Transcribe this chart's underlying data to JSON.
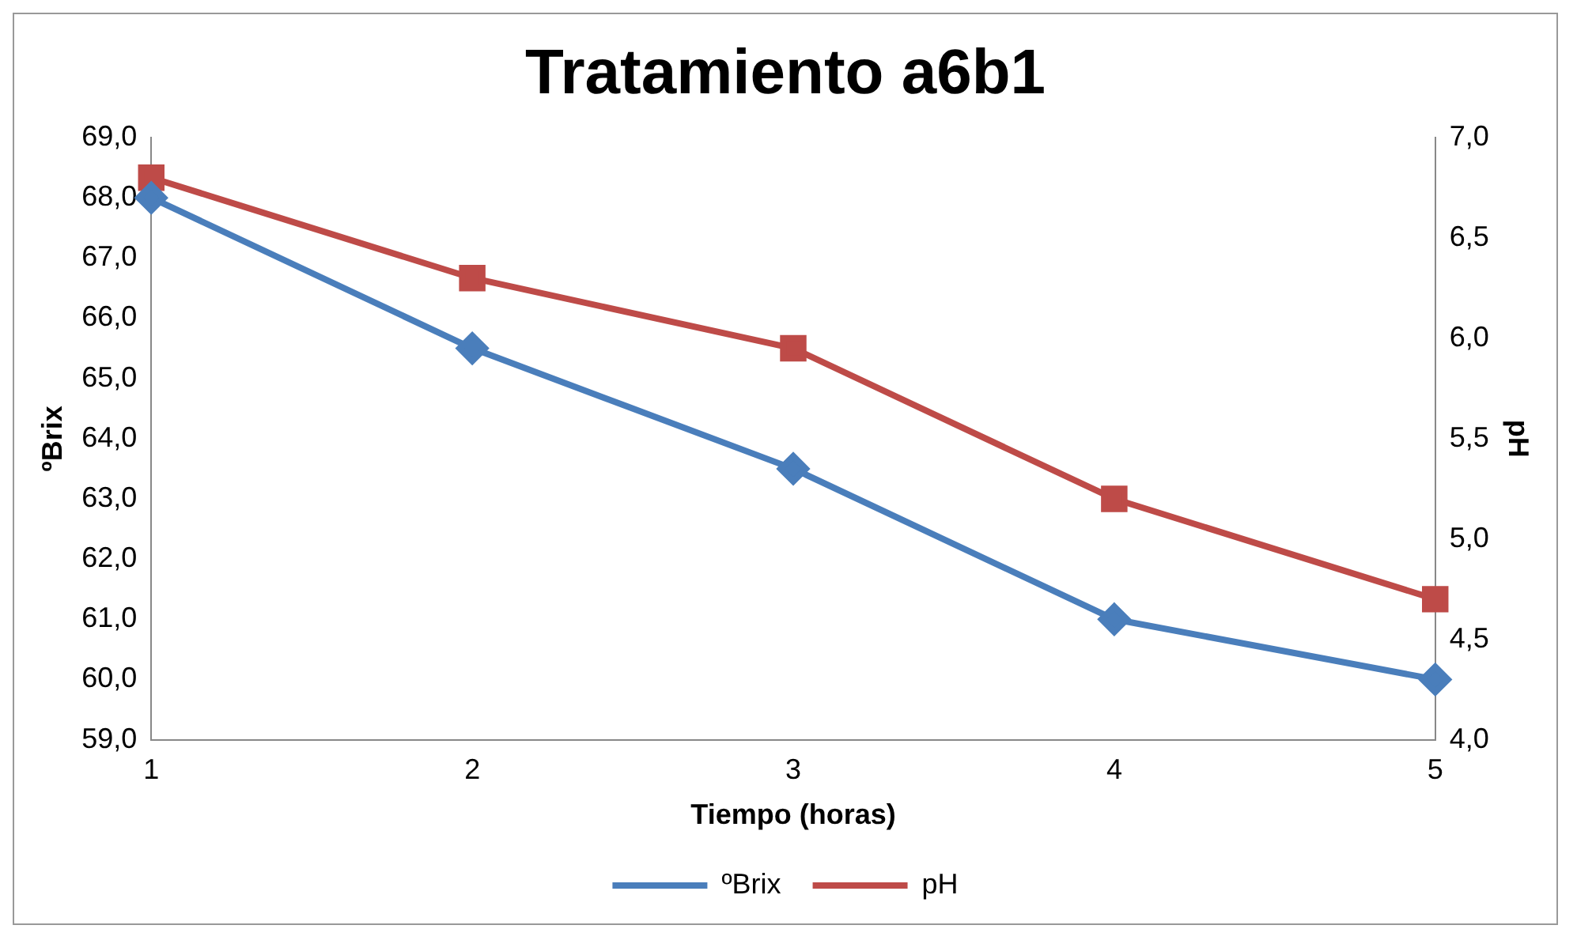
{
  "chart_data": {
    "type": "line",
    "title": "Tratamiento a6b1",
    "xlabel": "Tiempo (horas)",
    "ylabel": "ºBrix",
    "y2label": "pH",
    "categories": [
      "1",
      "2",
      "3",
      "4",
      "5"
    ],
    "series": [
      {
        "name": "ºBrix",
        "color": "#4a7ebb",
        "marker": "diamond",
        "values": [
          68.0,
          65.5,
          63.5,
          61.0,
          60.0
        ]
      },
      {
        "name": "pH",
        "color": "#be4b48",
        "marker": "square",
        "axis": "y2",
        "values": [
          6.8,
          6.3,
          5.95,
          5.2,
          4.7
        ]
      }
    ],
    "ylim": [
      59,
      69
    ],
    "yticks": [
      {
        "value": 59,
        "label": "59,0"
      },
      {
        "value": 60,
        "label": "60,0"
      },
      {
        "value": 61,
        "label": "61,0"
      },
      {
        "value": 62,
        "label": "62,0"
      },
      {
        "value": 63,
        "label": "63,0"
      },
      {
        "value": 64,
        "label": "64,0"
      },
      {
        "value": 65,
        "label": "65,0"
      },
      {
        "value": 66,
        "label": "66,0"
      },
      {
        "value": 67,
        "label": "67,0"
      },
      {
        "value": 68,
        "label": "68,0"
      },
      {
        "value": 69,
        "label": "69,0"
      }
    ],
    "y2lim": [
      4,
      7
    ],
    "y2ticks": [
      {
        "value": 4,
        "label": "4,0"
      },
      {
        "value": 4.5,
        "label": "4,5"
      },
      {
        "value": 5,
        "label": "5,0"
      },
      {
        "value": 5.5,
        "label": "5,5"
      },
      {
        "value": 6,
        "label": "6,0"
      },
      {
        "value": 6.5,
        "label": "6,5"
      },
      {
        "value": 7,
        "label": "7,0"
      }
    ],
    "grid": false,
    "legend": "bottom"
  }
}
